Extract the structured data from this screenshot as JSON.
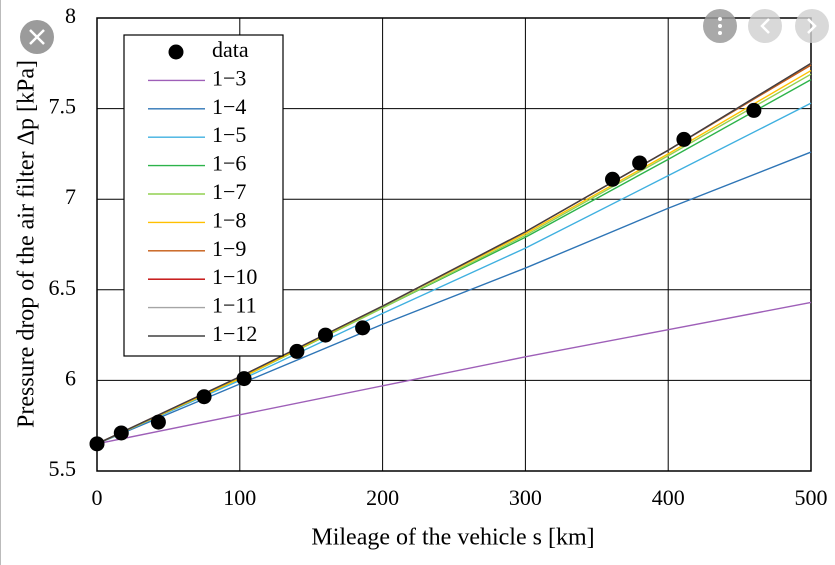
{
  "chart_data": {
    "type": "line",
    "xlabel": "Mileage of the vehicle s [km]",
    "ylabel": "Pressure drop of the air filter Δp [kPa]",
    "xlim": [
      0,
      500
    ],
    "ylim": [
      5.5,
      8
    ],
    "xticks": [
      0,
      100,
      200,
      300,
      400,
      500
    ],
    "yticks": [
      5.5,
      6,
      6.5,
      7,
      7.5,
      8
    ],
    "grid": true,
    "legend": "upper left",
    "series": [
      {
        "name": "data",
        "type": "scatter",
        "color": "#000000",
        "x": [
          0,
          17,
          43,
          75,
          103,
          140,
          160,
          186,
          361,
          380,
          411,
          460
        ],
        "values": [
          5.65,
          5.71,
          5.77,
          5.91,
          6.01,
          6.16,
          6.25,
          6.29,
          7.11,
          7.2,
          7.33,
          7.49
        ]
      },
      {
        "name": "1−3",
        "color": "#9e5fb8",
        "x": [
          0,
          100,
          200,
          300,
          400,
          500
        ],
        "values": [
          5.65,
          5.81,
          5.97,
          6.13,
          6.28,
          6.43
        ]
      },
      {
        "name": "1−4",
        "color": "#2e75b6",
        "x": [
          0,
          100,
          200,
          300,
          400,
          500
        ],
        "values": [
          5.65,
          5.98,
          6.31,
          6.62,
          6.95,
          7.26
        ]
      },
      {
        "name": "1−5",
        "color": "#3fb0e0",
        "x": [
          0,
          100,
          200,
          300,
          400,
          500
        ],
        "values": [
          5.65,
          6.0,
          6.37,
          6.73,
          7.13,
          7.53
        ]
      },
      {
        "name": "1−6",
        "color": "#2db34a",
        "x": [
          0,
          100,
          200,
          300,
          400,
          500
        ],
        "values": [
          5.65,
          6.01,
          6.4,
          6.79,
          7.22,
          7.66
        ]
      },
      {
        "name": "1−7",
        "color": "#92d050",
        "x": [
          0,
          100,
          200,
          300,
          400,
          500
        ],
        "values": [
          5.65,
          6.01,
          6.4,
          6.8,
          7.24,
          7.69
        ]
      },
      {
        "name": "1−8",
        "color": "#ffc000",
        "x": [
          0,
          100,
          200,
          300,
          400,
          500
        ],
        "values": [
          5.65,
          6.01,
          6.41,
          6.81,
          7.25,
          7.71
        ]
      },
      {
        "name": "1−9",
        "color": "#c55a11",
        "x": [
          0,
          100,
          200,
          300,
          400,
          500
        ],
        "values": [
          5.65,
          6.02,
          6.41,
          6.82,
          7.27,
          7.74
        ]
      },
      {
        "name": "1−10",
        "color": "#c00000",
        "x": [
          0,
          100,
          200,
          300,
          400,
          500
        ],
        "values": [
          5.65,
          6.02,
          6.41,
          6.82,
          7.27,
          7.75
        ]
      },
      {
        "name": "1−11",
        "color": "#a5a5a5",
        "x": [
          0,
          100,
          200,
          300,
          400,
          500
        ],
        "values": [
          5.65,
          6.02,
          6.41,
          6.82,
          7.27,
          7.75
        ]
      },
      {
        "name": "1−12",
        "color": "#404040",
        "x": [
          0,
          100,
          200,
          300,
          400,
          500
        ],
        "values": [
          5.65,
          6.02,
          6.41,
          6.82,
          7.27,
          7.75
        ]
      }
    ]
  }
}
